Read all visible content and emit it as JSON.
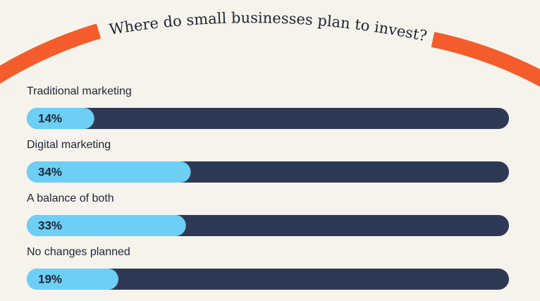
{
  "chart_data": {
    "type": "bar",
    "title": "Where do small businesses plan to invest?",
    "categories": [
      "Traditional marketing",
      "Digital marketing",
      "A balance of both",
      "No changes planned"
    ],
    "values": [
      14,
      34,
      33,
      19
    ],
    "value_labels": [
      "14%",
      "34%",
      "33%",
      "19%"
    ],
    "color": "#6dcff6",
    "track_color": "#2e3a55",
    "xlim": [
      0,
      100
    ]
  }
}
